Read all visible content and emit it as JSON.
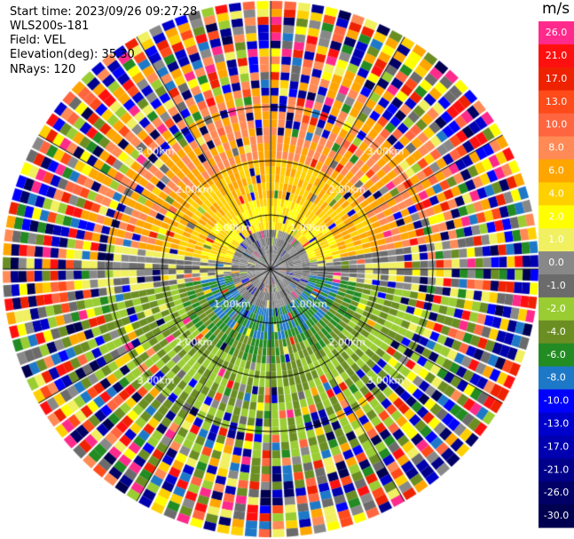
{
  "header": {
    "start_time": "Start time: 2023/09/26 09:27:28",
    "instrument": "WLS200s-181",
    "field": "Field: VEL",
    "elevation": "Elevation(deg): 35.30",
    "nrays": "NRays: 120"
  },
  "colorbar": {
    "unit": "m/s",
    "labels": [
      "26.0",
      "21.0",
      "17.0",
      "13.0",
      "10.0",
      "8.0",
      "6.0",
      "4.0",
      "2.0",
      "1.0",
      "0.0",
      "-1.0",
      "-2.0",
      "-4.0",
      "-6.0",
      "-8.0",
      "-10.0",
      "-13.0",
      "-17.0",
      "-21.0",
      "-26.0",
      "-30.0"
    ],
    "colors": [
      "#ff2a8c",
      "#ff1010",
      "#ee2200",
      "#ff4a1a",
      "#ff6640",
      "#ff8a55",
      "#ffa500",
      "#ffd000",
      "#ffff00",
      "#f0f060",
      "#888888",
      "#6b6b6b",
      "#9acd32",
      "#6b8e23",
      "#228b22",
      "#1e78c8",
      "#0000ff",
      "#0000cd",
      "#0000b0",
      "#00008b",
      "#000066",
      "#000050"
    ]
  },
  "chart_data": {
    "type": "heatmap",
    "subtype": "polar PPI (plan position indicator)",
    "field": "VEL",
    "unit": "m/s",
    "nrays": 120,
    "elevation_deg": 35.3,
    "range_rings_km": [
      1.0,
      2.0,
      3.0
    ],
    "range_ring_labels": [
      "1.00km",
      "2.00km",
      "3.00km"
    ],
    "color_levels": [
      -30.0,
      -26.0,
      -21.0,
      -17.0,
      -13.0,
      -10.0,
      -8.0,
      -6.0,
      -4.0,
      -2.0,
      -1.0,
      0.0,
      1.0,
      2.0,
      4.0,
      6.0,
      8.0,
      10.0,
      13.0,
      17.0,
      21.0,
      26.0
    ],
    "pattern": {
      "upper_half": "positive velocities (yellow to orange, ~2 to 8 m/s), increasing with range",
      "lower_half": "negative velocities (green to blue, ~-2 to -8 m/s)",
      "outer_ranges": "noisy, random colors across full scale"
    },
    "grid": true
  }
}
